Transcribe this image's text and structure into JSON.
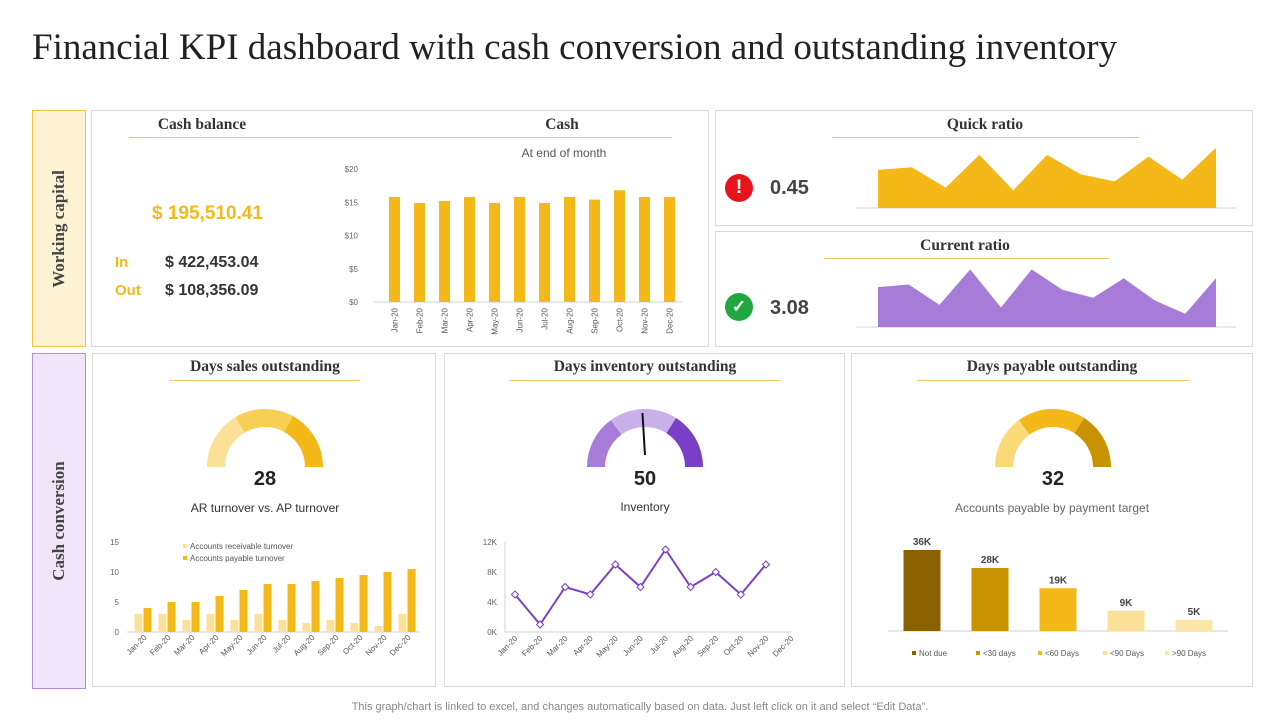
{
  "title": "Financial KPI dashboard with cash conversion and outstanding inventory",
  "colors": {
    "yellow": "#f4b919",
    "light_yellow": "#fbe097",
    "purple": "#a67cd8",
    "dark_purple": "#7a3fc7",
    "light_purple": "#c9b0ea",
    "red": "#e8141c",
    "green": "#1fa83f",
    "brown": "#8b6100",
    "ochre": "#c99200"
  },
  "sections": {
    "working_capital": "Working capital",
    "cash_conversion": "Cash conversion"
  },
  "cash_balance": {
    "title": "Cash balance",
    "total": "$ 195,510.41",
    "in_label": "In",
    "in_value": "$ 422,453.04",
    "out_label": "Out",
    "out_value": "$ 108,356.09"
  },
  "quick_ratio": {
    "title": "Quick ratio",
    "value": "0.45",
    "status_icon": "exclamation-icon"
  },
  "current_ratio": {
    "title": "Current ratio",
    "value": "3.08",
    "status_icon": "checkmark-icon"
  },
  "dso": {
    "title": "Days sales outstanding",
    "value": "28",
    "subtitle": "AR turnover  vs.  AP turnover",
    "gauge_fraction": 0.28
  },
  "dio": {
    "title": "Days inventory outstanding",
    "value": "50",
    "subtitle": "Inventory",
    "gauge_fraction": 0.5
  },
  "dpo": {
    "title": "Days payable outstanding",
    "value": "32",
    "subtitle": "Accounts payable  by payment target",
    "gauge_fraction": 0.32
  },
  "footer": "This graph/chart is linked to excel,  and changes automatically based on data. Just left click on it and select “Edit Data”.",
  "chart_data": [
    {
      "id": "cash",
      "type": "bar",
      "title": "Cash",
      "subtitle": "At  end of month",
      "categories": [
        "Jan-20",
        "Feb-20",
        "Mar-20",
        "Apr-20",
        "May-20",
        "Jun-20",
        "Jul-20",
        "Aug-20",
        "Sep-20",
        "Oct-20",
        "Nov-20",
        "Dec-20"
      ],
      "values": [
        15.8,
        14.9,
        15.2,
        15.8,
        14.9,
        15.8,
        14.9,
        15.8,
        15.4,
        16.8,
        15.8,
        15.8
      ],
      "ylim": [
        0,
        20
      ],
      "yticks": [
        0,
        5,
        10,
        15,
        20
      ],
      "ytick_labels": [
        "$0",
        "$5",
        "$10",
        "$15",
        "$20"
      ]
    },
    {
      "id": "quick_ratio",
      "type": "area",
      "values": [
        4.3,
        4.6,
        2.3,
        6.0,
        2.0,
        6.0,
        3.8,
        3.0,
        5.8,
        3.2,
        6.8
      ],
      "ylim": [
        0,
        7
      ]
    },
    {
      "id": "current_ratio",
      "type": "area",
      "values": [
        4.5,
        4.8,
        2.5,
        6.5,
        2.2,
        6.5,
        4.2,
        3.3,
        5.5,
        3.0,
        1.5,
        5.5
      ],
      "ylim": [
        0,
        7
      ]
    },
    {
      "id": "ar_ap",
      "type": "bar",
      "legend": [
        "Accounts receivable turnover",
        "Accounts payable turnover"
      ],
      "categories": [
        "Jan-20",
        "Feb-20",
        "Mar-20",
        "Apr-20",
        "May-20",
        "Jun-20",
        "Jul-20",
        "Aug-20",
        "Sep-20",
        "Oct-20",
        "Nov-20",
        "Dec-20"
      ],
      "series": [
        {
          "name": "Accounts receivable turnover",
          "values": [
            3,
            3,
            2,
            3,
            2,
            3,
            2,
            1.5,
            2,
            1.5,
            1,
            3
          ]
        },
        {
          "name": "Accounts payable turnover",
          "values": [
            4,
            5,
            5,
            6,
            7,
            8,
            8,
            8.5,
            9,
            9.5,
            10,
            10.5
          ]
        }
      ],
      "ylim": [
        0,
        15
      ],
      "yticks": [
        0,
        5,
        10,
        15
      ]
    },
    {
      "id": "inventory",
      "type": "line",
      "categories": [
        "Jan-20",
        "Feb-20",
        "Mar-20",
        "Apr-20",
        "May-20",
        "Jun-20",
        "Jul-20",
        "Aug-20",
        "Sep-20",
        "Oct-20",
        "Nov-20",
        "Dec-20"
      ],
      "values": [
        5000,
        1000,
        6000,
        5000,
        9000,
        6000,
        11000,
        6000,
        8000,
        5000,
        9000,
        null
      ],
      "ylim": [
        0,
        12000
      ],
      "yticks": [
        0,
        4000,
        8000,
        12000
      ],
      "ytick_labels": [
        "0K",
        "4K",
        "8K",
        "12K"
      ]
    },
    {
      "id": "payables",
      "type": "bar",
      "categories": [
        "Not due",
        "<30 days",
        "<60 Days",
        "<90 Days",
        ">90 Days"
      ],
      "values": [
        36,
        28,
        19,
        9,
        5
      ],
      "labels": [
        "36K",
        "28K",
        "19K",
        "9K",
        "5K"
      ],
      "ylim": [
        0,
        40
      ]
    }
  ]
}
